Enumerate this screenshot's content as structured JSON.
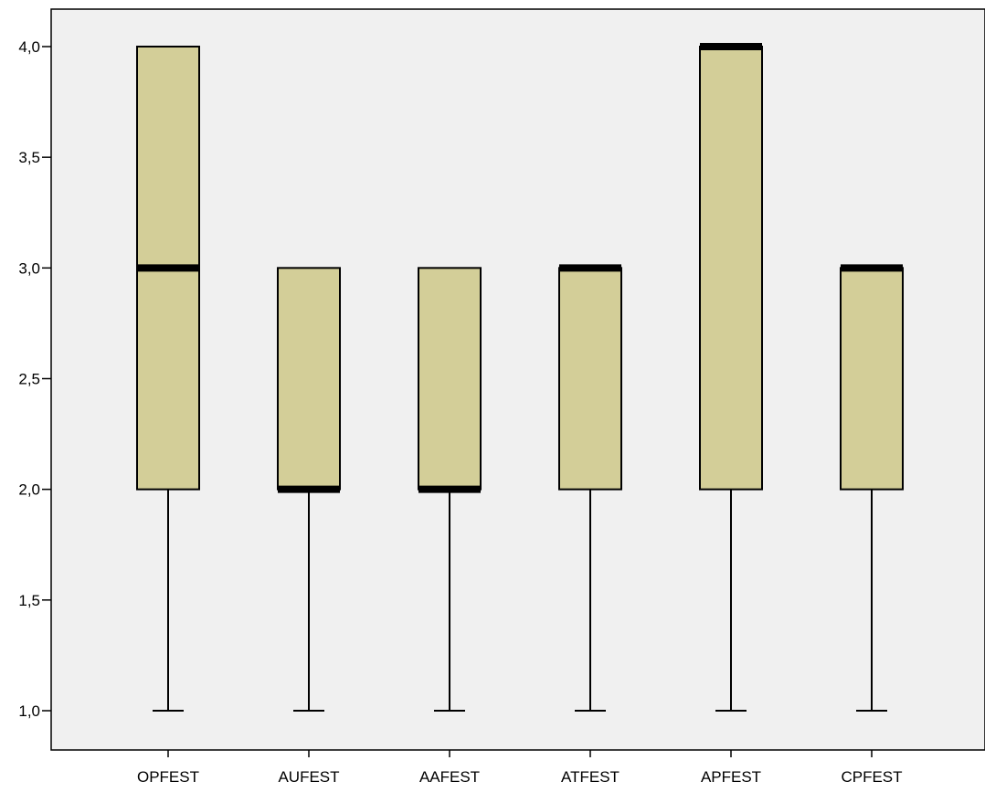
{
  "chart_data": {
    "type": "boxplot",
    "title": "",
    "xlabel": "",
    "ylabel": "",
    "ylim": [
      1.0,
      4.0
    ],
    "yticks": [
      1.0,
      1.5,
      2.0,
      2.5,
      3.0,
      3.5,
      4.0
    ],
    "ytick_labels": [
      "1,0",
      "1,5",
      "2,0",
      "2,5",
      "3,0",
      "3,5",
      "4,0"
    ],
    "grid": false,
    "legend": "none",
    "colors": {
      "background": "#f0f0f0",
      "box_fill": "#d3ce98",
      "stroke": "#000000"
    },
    "categories": [
      "OPFEST",
      "AUFEST",
      "AAFEST",
      "ATFEST",
      "APFEST",
      "CPFEST"
    ],
    "boxes": [
      {
        "category": "OPFEST",
        "min": 1.0,
        "q1": 2.0,
        "median": 3.0,
        "q3": 4.0,
        "max": 4.0
      },
      {
        "category": "AUFEST",
        "min": 1.0,
        "q1": 2.0,
        "median": 2.0,
        "q3": 3.0,
        "max": 3.0
      },
      {
        "category": "AAFEST",
        "min": 1.0,
        "q1": 2.0,
        "median": 2.0,
        "q3": 3.0,
        "max": 3.0
      },
      {
        "category": "ATFEST",
        "min": 1.0,
        "q1": 2.0,
        "median": 3.0,
        "q3": 3.0,
        "max": 3.0
      },
      {
        "category": "APFEST",
        "min": 1.0,
        "q1": 2.0,
        "median": 4.0,
        "q3": 4.0,
        "max": 4.0
      },
      {
        "category": "CPFEST",
        "min": 1.0,
        "q1": 2.0,
        "median": 3.0,
        "q3": 3.0,
        "max": 3.0
      }
    ]
  }
}
